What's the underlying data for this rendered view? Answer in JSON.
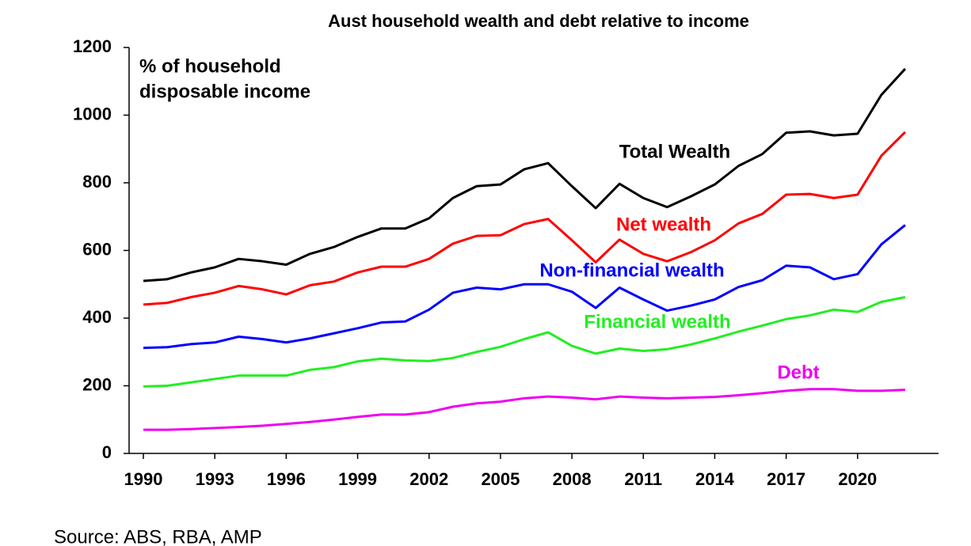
{
  "chart_data": {
    "type": "line",
    "title": "Aust household wealth and debt relative to income",
    "y_label_lines": [
      "% of household",
      "disposable income"
    ],
    "source": "Source: ABS, RBA, AMP",
    "x": [
      1990,
      1991,
      1992,
      1993,
      1994,
      1995,
      1996,
      1997,
      1998,
      1999,
      2000,
      2001,
      2002,
      2003,
      2004,
      2005,
      2006,
      2007,
      2008,
      2009,
      2010,
      2011,
      2012,
      2013,
      2014,
      2015,
      2016,
      2017,
      2018,
      2019,
      2020,
      2021,
      2022
    ],
    "xlim": [
      1989.4,
      2023.4
    ],
    "xticks": [
      1990,
      1993,
      1996,
      1999,
      2002,
      2005,
      2008,
      2011,
      2014,
      2017,
      2020
    ],
    "ylim": [
      0,
      1200
    ],
    "yticks": [
      0,
      200,
      400,
      600,
      800,
      1000,
      1200
    ],
    "series": [
      {
        "name": "Total Wealth",
        "color": "#000000",
        "values": [
          510,
          515,
          535,
          550,
          575,
          568,
          558,
          590,
          610,
          640,
          665,
          665,
          695,
          755,
          790,
          795,
          840,
          858,
          790,
          725,
          797,
          755,
          728,
          760,
          795,
          850,
          885,
          948,
          952,
          940,
          945,
          1060,
          1137
        ]
      },
      {
        "name": "Net wealth",
        "color": "#ff0000",
        "values": [
          440,
          445,
          462,
          475,
          495,
          485,
          470,
          497,
          508,
          535,
          552,
          552,
          575,
          620,
          643,
          645,
          678,
          693,
          630,
          565,
          632,
          590,
          568,
          595,
          630,
          680,
          708,
          765,
          767,
          755,
          765,
          880,
          950
        ]
      },
      {
        "name": "Non-financial wealth",
        "color": "#0000ff",
        "values": [
          312,
          314,
          323,
          328,
          345,
          338,
          328,
          340,
          355,
          370,
          387,
          390,
          425,
          475,
          490,
          485,
          500,
          500,
          478,
          430,
          490,
          455,
          422,
          437,
          455,
          492,
          512,
          555,
          550,
          515,
          530,
          618,
          675
        ]
      },
      {
        "name": "Financial wealth",
        "color": "#22ee22",
        "values": [
          198,
          200,
          210,
          220,
          230,
          230,
          230,
          247,
          255,
          272,
          280,
          275,
          273,
          282,
          300,
          315,
          338,
          358,
          318,
          295,
          310,
          303,
          308,
          322,
          340,
          360,
          378,
          397,
          408,
          425,
          418,
          448,
          462
        ]
      },
      {
        "name": "Debt",
        "color": "#ee00ee",
        "values": [
          70,
          70,
          72,
          75,
          78,
          82,
          87,
          93,
          100,
          108,
          115,
          115,
          122,
          138,
          148,
          153,
          163,
          168,
          165,
          160,
          168,
          165,
          163,
          165,
          167,
          172,
          178,
          185,
          190,
          190,
          185,
          185,
          188
        ]
      }
    ]
  }
}
